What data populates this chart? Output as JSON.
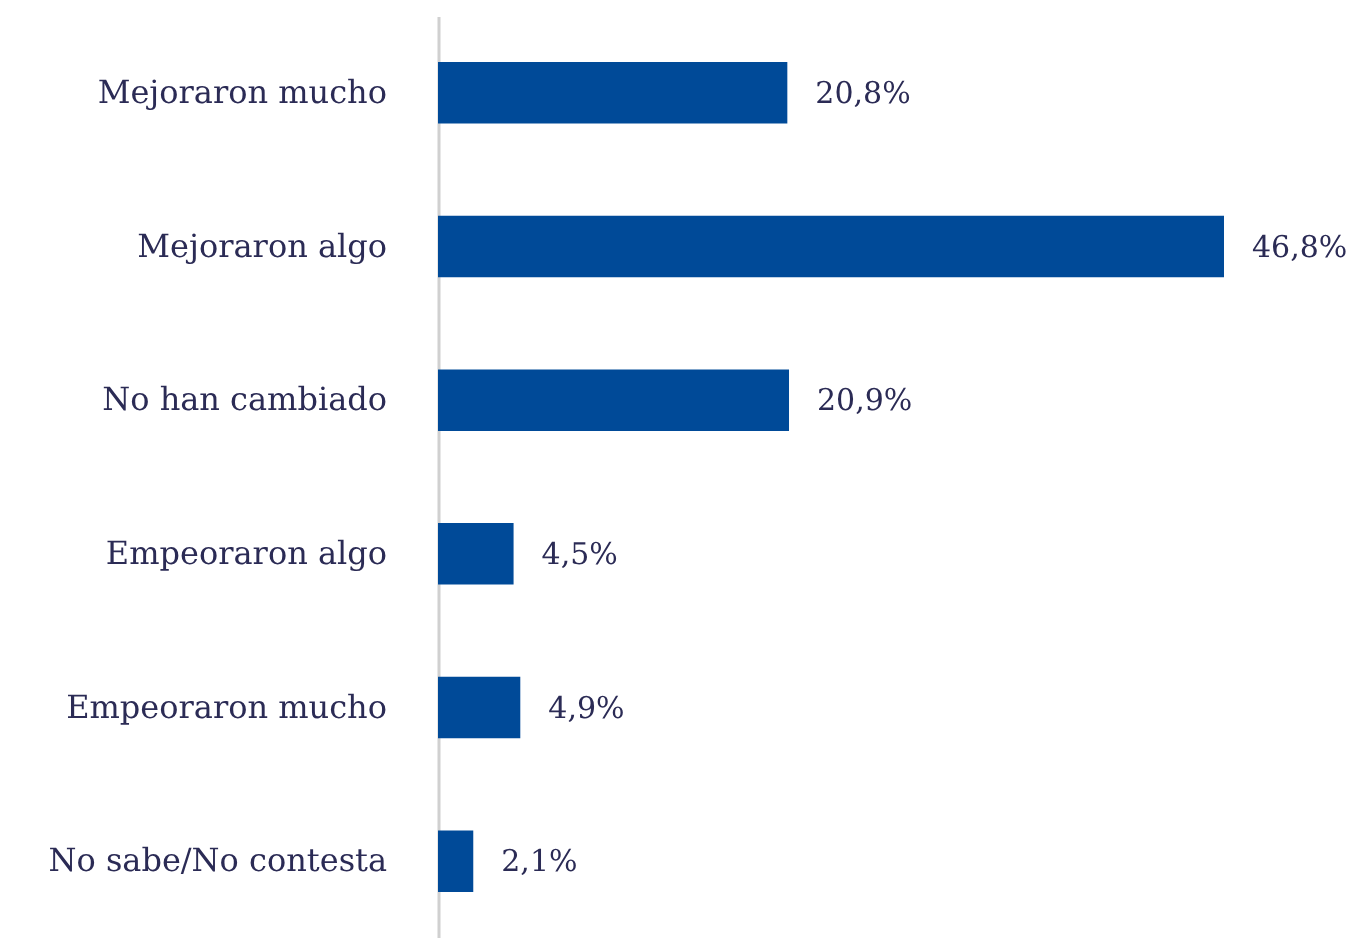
{
  "chart_data": {
    "type": "bar",
    "orientation": "horizontal",
    "categories": [
      "Mejoraron mucho",
      "Mejoraron algo",
      "No han cambiado",
      "Empeoraron algo",
      "Empeoraron mucho",
      "No sabe/No contesta"
    ],
    "values": [
      20.8,
      46.8,
      20.9,
      4.5,
      4.9,
      2.1
    ],
    "value_labels": [
      "20,8%",
      "46,8%",
      "20,9%",
      "4,5%",
      "4,9%",
      "2,1%"
    ],
    "color": "#004a98"
  }
}
